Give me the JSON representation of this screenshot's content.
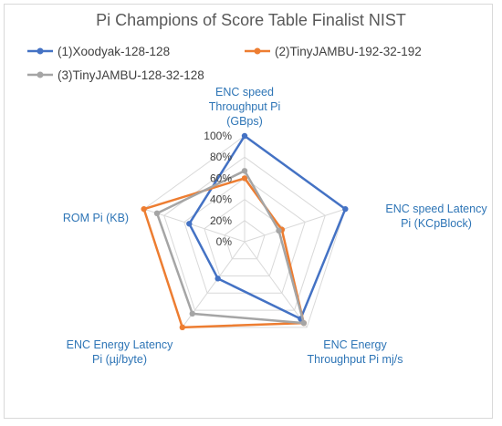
{
  "chart_data": {
    "type": "radar",
    "title": "Pi Champions of Score Table Finalist NIST",
    "categories": [
      "ENC speed Throughput Pi (GBps)",
      "ENC speed Latency Pi (KCpBlock)",
      "ENC Energy Throughput Pi mj/s",
      "ENC Energy Latency Pi (µj/byte)",
      "ROM Pi (KB)"
    ],
    "axis_label_lines": [
      [
        "ENC speed",
        "Throughput Pi",
        "(GBps)"
      ],
      [
        "ENC speed Latency",
        "Pi (KCpBlock)"
      ],
      [
        "ENC Energy",
        "Throughput Pi mj/s"
      ],
      [
        "ENC Energy Latency",
        "Pi (µj/byte)"
      ],
      [
        "ROM Pi (KB)"
      ]
    ],
    "ticks": [
      "0%",
      "20%",
      "40%",
      "60%",
      "80%",
      "100%"
    ],
    "tick_values": [
      0,
      0.2,
      0.4,
      0.6,
      0.8,
      1.0
    ],
    "range": [
      0,
      1
    ],
    "grid": true,
    "legend_position": "top",
    "series": [
      {
        "name": "(1)Xoodyak-128-128",
        "color": "#4472c4",
        "values": [
          1.0,
          1.0,
          0.9,
          0.43,
          0.55
        ]
      },
      {
        "name": "(2)TinyJAMBU-192-32-192",
        "color": "#ed7d31",
        "values": [
          0.6,
          0.37,
          0.95,
          1.0,
          1.0
        ]
      },
      {
        "name": "(3)TinyJAMBU-128-32-128",
        "color": "#a5a5a5",
        "values": [
          0.67,
          0.34,
          0.95,
          0.84,
          0.87
        ]
      }
    ]
  }
}
